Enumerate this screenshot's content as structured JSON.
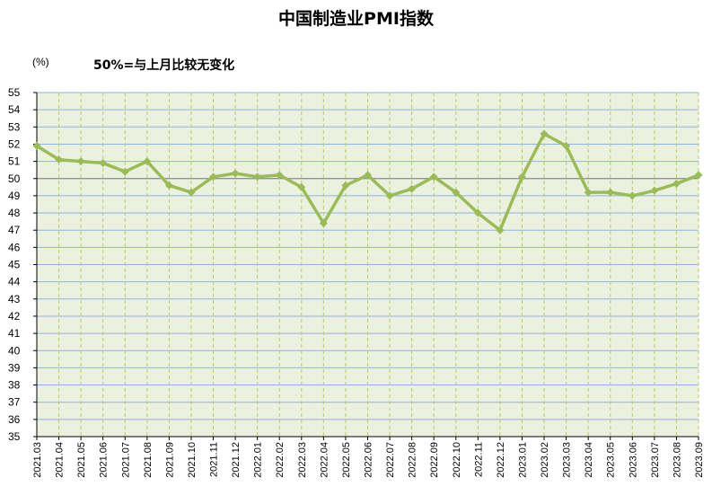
{
  "colors": {
    "plot_background": "#EBF1DE",
    "horizontal_grid": "#8DB4E2",
    "vertical_grid": "#B3CC6C",
    "series_line": "#9BBB59",
    "baseline": "#7F7F7F"
  },
  "y_unit_label": "(%)",
  "chart_data": {
    "type": "line",
    "title": "中国制造业PMI指数",
    "annotation": "50%=与上月比较无变化",
    "xlabel": "",
    "ylabel": "(%)",
    "ylim": [
      35,
      55
    ],
    "ytick_step": 1,
    "grid": true,
    "legend": "none",
    "baseline": 50,
    "x": [
      "2021.03",
      "2021.04",
      "2021.05",
      "2021.06",
      "2021.07",
      "2021.08",
      "2021.09",
      "2021.10",
      "2021.11",
      "2021.12",
      "2022.01",
      "2022.02",
      "2022.03",
      "2022.04",
      "2022.05",
      "2022.06",
      "2022.07",
      "2022.08",
      "2022.09",
      "2022.10",
      "2022.11",
      "2022.12",
      "2023.01",
      "2023.02",
      "2023.03",
      "2023.04",
      "2023.05",
      "2023.06",
      "2023.07",
      "2023.08",
      "2023.09"
    ],
    "series": [
      {
        "values": [
          51.9,
          51.1,
          51.0,
          50.9,
          50.4,
          51.0,
          49.6,
          49.2,
          50.1,
          50.3,
          50.1,
          50.2,
          49.5,
          47.4,
          49.6,
          50.2,
          49.0,
          49.4,
          50.1,
          49.2,
          48.0,
          47.0,
          50.1,
          52.6,
          51.9,
          49.2,
          49.2,
          49.0,
          49.3,
          49.7,
          50.2
        ]
      }
    ]
  }
}
